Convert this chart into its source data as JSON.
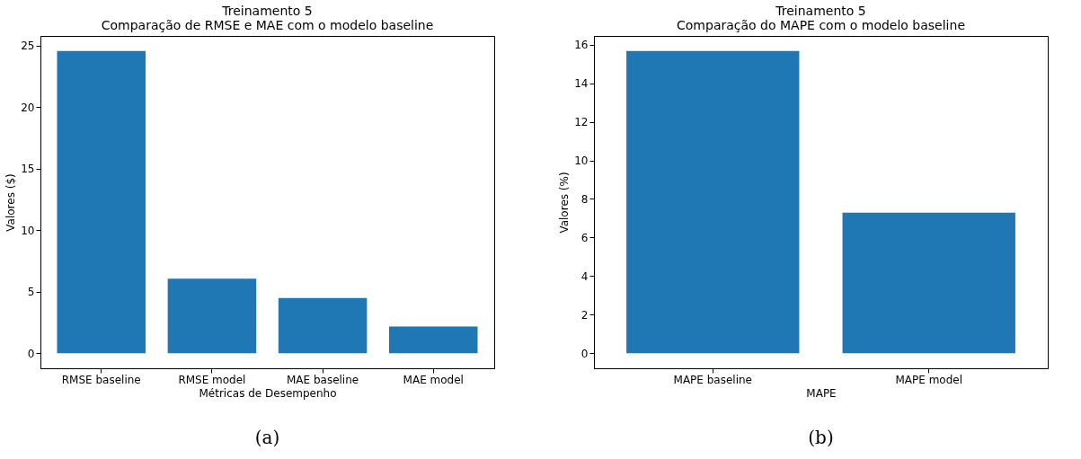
{
  "chart_data": [
    {
      "type": "bar",
      "title": "Treinamento 5",
      "subtitle": "Comparação de RMSE e MAE com o modelo baseline",
      "xlabel": "Métricas de Desempenho",
      "ylabel": "Valores ($)",
      "categories": [
        "RMSE baseline",
        "RMSE model",
        "MAE baseline",
        "MAE model"
      ],
      "series": [
        {
          "color": "#1f77b4",
          "values": [
            24.55,
            6.06,
            4.49,
            2.17
          ]
        }
      ],
      "ylim": [
        -1.23,
        25.78
      ],
      "yticks": [
        0,
        5,
        10,
        15,
        20,
        25
      ],
      "grid": false,
      "annotations": [
        "(a)"
      ]
    },
    {
      "type": "bar",
      "title": "Treinamento 5",
      "subtitle": "Comparação do MAPE com o modelo baseline",
      "xlabel": "MAPE",
      "ylabel": "Valores (%)",
      "categories": [
        "MAPE baseline",
        "MAPE model"
      ],
      "series": [
        {
          "color": "#1f77b4",
          "values": [
            15.67,
            7.29
          ]
        }
      ],
      "ylim": [
        -0.78,
        16.45
      ],
      "yticks": [
        0,
        2,
        4,
        6,
        8,
        10,
        12,
        14,
        16
      ],
      "grid": false,
      "annotations": [
        "(b)"
      ]
    }
  ]
}
